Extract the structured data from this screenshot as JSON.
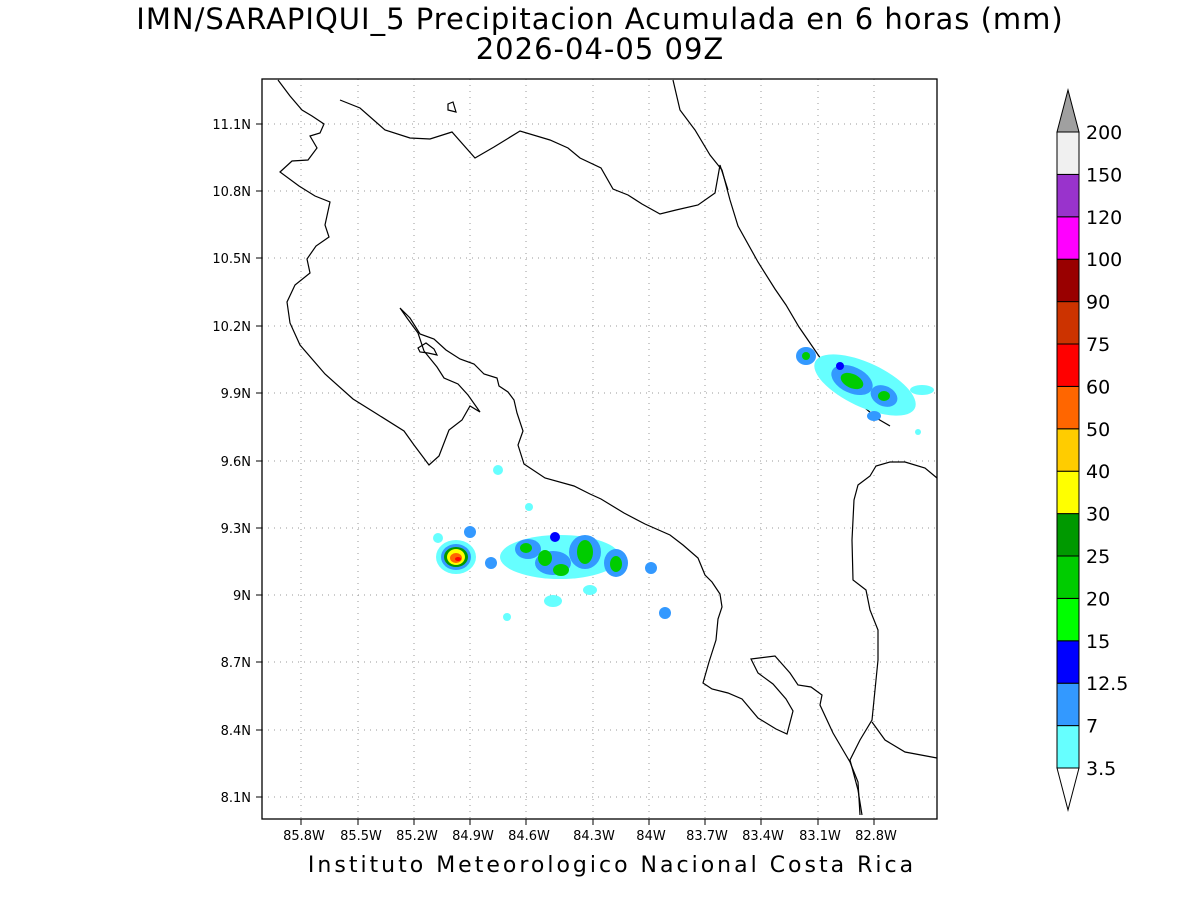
{
  "title_line1": "IMN/SARAPIQUI_5 Precipitacion Acumulada en 6 horas (mm)",
  "title_line2": "2026-04-05 09Z",
  "footer": "Instituto Meteorologico Nacional Costa Rica",
  "map": {
    "lon_range": [
      -86.0,
      -83.0
    ],
    "lat_range": [
      8.0,
      11.3
    ],
    "grid": "dotted",
    "lon_ticks": [
      "85.8W",
      "85.5W",
      "85.2W",
      "84.9W",
      "84.6W",
      "84.3W",
      "84W",
      "83.7W",
      "83.4W",
      "83.1W",
      "82.8W"
    ],
    "lat_ticks": [
      "11.1N",
      "10.8N",
      "10.5N",
      "10.2N",
      "9.9N",
      "9.6N",
      "9.3N",
      "9N",
      "8.7N",
      "8.4N",
      "8.1N"
    ]
  },
  "colorbar": {
    "levels": [
      "3.5",
      "7",
      "12.5",
      "15",
      "20",
      "25",
      "30",
      "40",
      "50",
      "60",
      "75",
      "90",
      "100",
      "120",
      "150",
      "200"
    ],
    "colors": [
      "#66ffff",
      "#3399ff",
      "#0000ff",
      "#00ff00",
      "#00cc00",
      "#009900",
      "#ffff00",
      "#ffcc00",
      "#ff6600",
      "#ff0000",
      "#cc3300",
      "#990000",
      "#ff00ff",
      "#9933cc",
      "#f0f0f0"
    ],
    "over_color": "#a0a0a0",
    "under_color": "#ffffff"
  }
}
